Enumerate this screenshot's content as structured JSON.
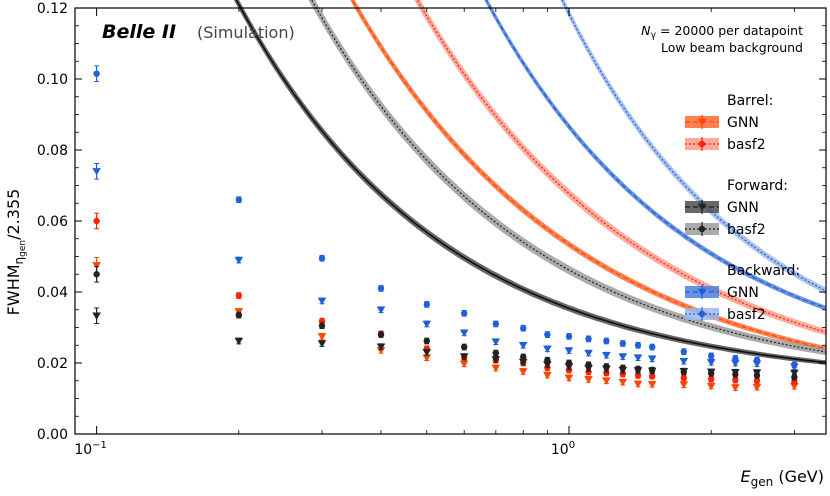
{
  "chart_data": {
    "type": "scatter",
    "title": "",
    "xlabel": "E_gen (GeV)",
    "xlabel_main": "E",
    "xlabel_sub": "gen",
    "xlabel_unit": " (GeV)",
    "ylabel": "FWHM_ηgen/2.355",
    "ylabel_main": "FWHM",
    "ylabel_sub": "η",
    "ylabel_subsub": "gen",
    "ylabel_tail": "/2.355",
    "xscale": "log",
    "xlim": [
      0.09,
      3.5
    ],
    "ylim": [
      0.0,
      0.12
    ],
    "yticks": [
      0.0,
      0.02,
      0.04,
      0.06,
      0.08,
      0.1,
      0.12
    ],
    "ytick_labels": [
      "0.00",
      "0.02",
      "0.04",
      "0.06",
      "0.08",
      "0.10",
      "0.12"
    ],
    "xtick_major": [
      0.1,
      1.0
    ],
    "xtick_labels": [
      {
        "base": "10",
        "exp": "−1"
      },
      {
        "base": "10",
        "exp": "0"
      }
    ],
    "xtick_minor": [
      0.2,
      0.3,
      0.4,
      0.5,
      0.6,
      0.7,
      0.8,
      0.9,
      2.0,
      3.0
    ],
    "branding": {
      "bold": "Belle II",
      "normal": "(Simulation)"
    },
    "note": {
      "line1_pre": "N",
      "line1_sub": "γ",
      "line1_post": " = 20000 per datapoint",
      "line2": "Low beam background"
    },
    "legend": {
      "position": "right",
      "groups": [
        {
          "title": "Barrel:",
          "entries": [
            {
              "label": "GNN",
              "series_index": 0
            },
            {
              "label": "basf2",
              "series_index": 1
            }
          ]
        },
        {
          "title": "Forward:",
          "entries": [
            {
              "label": "GNN",
              "series_index": 2
            },
            {
              "label": "basf2",
              "series_index": 3
            }
          ]
        },
        {
          "title": "Backward:",
          "entries": [
            {
              "label": "GNN",
              "series_index": 4
            },
            {
              "label": "basf2",
              "series_index": 5
            }
          ]
        }
      ]
    },
    "x": [
      0.1,
      0.2,
      0.3,
      0.4,
      0.5,
      0.6,
      0.7,
      0.8,
      0.9,
      1.0,
      1.1,
      1.2,
      1.3,
      1.4,
      1.5,
      1.75,
      2.0,
      2.25,
      2.5,
      3.0
    ],
    "series": [
      {
        "region": "Barrel",
        "method": "GNN",
        "color": "#ff4500",
        "marker": "triangle-down",
        "values": [
          0.0475,
          0.0345,
          0.0275,
          0.0236,
          0.0215,
          0.0198,
          0.0186,
          0.0176,
          0.0166,
          0.0158,
          0.0154,
          0.015,
          0.0146,
          0.0141,
          0.014,
          0.0139,
          0.0135,
          0.0131,
          0.0132,
          0.0135
        ],
        "fit": {
          "a": 0.0434,
          "b": 0.9,
          "c": 0.01
        }
      },
      {
        "region": "Barrel",
        "method": "basf2",
        "color": "#ff2200",
        "marker": "circle",
        "values": [
          0.06,
          0.039,
          0.0318,
          0.0282,
          0.024,
          0.0215,
          0.0208,
          0.02,
          0.0187,
          0.018,
          0.0175,
          0.0172,
          0.0169,
          0.0165,
          0.0163,
          0.0158,
          0.0155,
          0.0152,
          0.015,
          0.0148
        ],
        "fit": {
          "a": 0.0577,
          "b": 0.9,
          "c": 0.01
        }
      },
      {
        "region": "Forward",
        "method": "GNN",
        "color": "#222222",
        "marker": "triangle-down",
        "values": [
          0.0333,
          0.0262,
          0.0255,
          0.0246,
          0.023,
          0.0218,
          0.021,
          0.0203,
          0.0196,
          0.019,
          0.0185,
          0.0183,
          0.018,
          0.0179,
          0.0178,
          0.0177,
          0.0175,
          0.0174,
          0.0173,
          0.0172
        ],
        "fit": {
          "a": 0.0214,
          "b": 1.0,
          "c": 0.014
        }
      },
      {
        "region": "Forward",
        "method": "basf2",
        "color": "#222222",
        "marker": "circle",
        "values": [
          0.045,
          0.0335,
          0.0305,
          0.028,
          0.0262,
          0.0245,
          0.0228,
          0.0217,
          0.0208,
          0.02,
          0.0195,
          0.019,
          0.0186,
          0.0183,
          0.018,
          0.0175,
          0.0171,
          0.0168,
          0.0165,
          0.016
        ],
        "fit": {
          "a": 0.0332,
          "b": 0.95,
          "c": 0.013
        }
      },
      {
        "region": "Backward",
        "method": "GNN",
        "color": "#1f5fd6",
        "marker": "triangle-down",
        "values": [
          0.074,
          0.049,
          0.0375,
          0.035,
          0.031,
          0.0285,
          0.026,
          0.025,
          0.024,
          0.0235,
          0.0228,
          0.0222,
          0.0218,
          0.0215,
          0.0212,
          0.0205,
          0.0202,
          0.02,
          0.0198,
          0.019
        ],
        "fit": {
          "a": 0.0716,
          "b": 1.0,
          "c": 0.015
        }
      },
      {
        "region": "Backward",
        "method": "basf2",
        "color": "#2060d8",
        "marker": "circle",
        "values": [
          0.1015,
          0.066,
          0.0495,
          0.041,
          0.0365,
          0.034,
          0.031,
          0.0298,
          0.028,
          0.0275,
          0.0268,
          0.0262,
          0.0255,
          0.025,
          0.0245,
          0.0232,
          0.022,
          0.0213,
          0.0208,
          0.0195
        ],
        "fit": {
          "a": 0.1044,
          "b": 1.1,
          "c": 0.014
        }
      }
    ],
    "grid": false
  }
}
